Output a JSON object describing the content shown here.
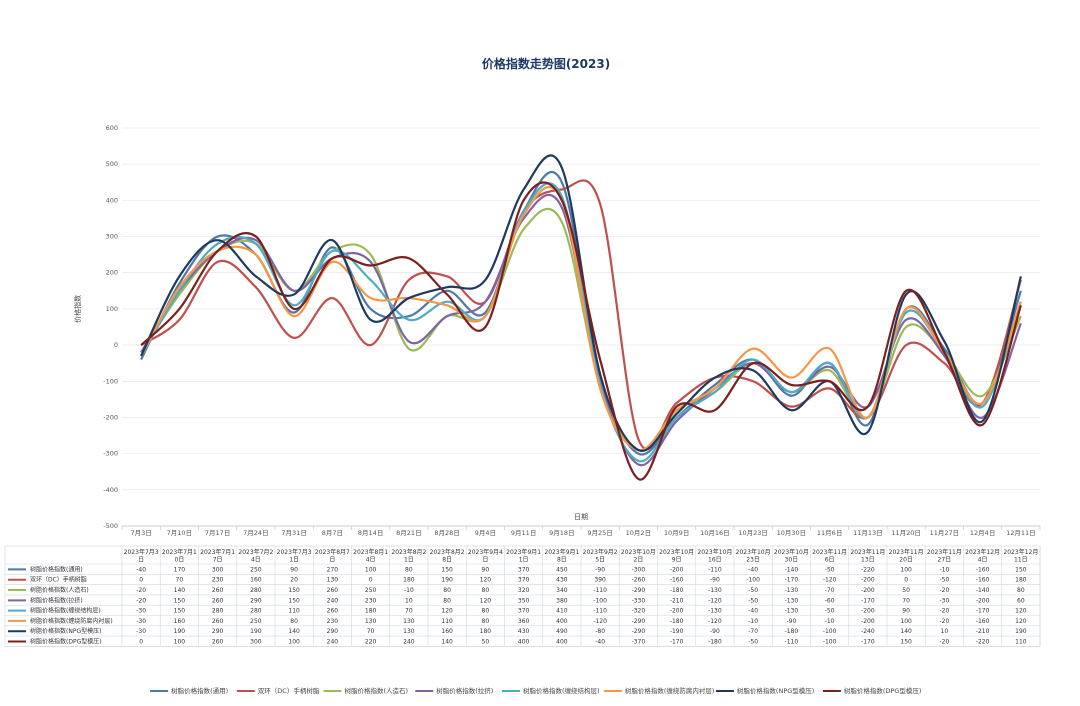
{
  "chart_data": {
    "type": "line",
    "title": "价格指数走势图(2023)",
    "xlabel": "日期",
    "ylabel": "价格指数",
    "ylim": [
      -500,
      600
    ],
    "yticks": [
      600,
      500,
      400,
      300,
      200,
      100,
      0,
      -100,
      -200,
      -300,
      -400,
      -500
    ],
    "grid": true,
    "legend_position": "bottom",
    "axis_dates": [
      "7月3日",
      "7月10日",
      "7月17日",
      "7月24日",
      "7月31日",
      "8月7日",
      "8月14日",
      "8月21日",
      "8月28日",
      "9月4日",
      "9月11日",
      "9月18日",
      "9月25日",
      "10月2日",
      "10月9日",
      "10月16日",
      "10月23日",
      "10月30日",
      "11月6日",
      "11月13日",
      "11月20日",
      "11月27日",
      "12月4日",
      "12月11日"
    ],
    "table_headers": [
      [
        "2023年7月3",
        "日"
      ],
      [
        "2023年7月1",
        "0日"
      ],
      [
        "2023年7月1",
        "7日"
      ],
      [
        "2023年7月2",
        "4日"
      ],
      [
        "2023年7月3",
        "1日"
      ],
      [
        "2023年8月7",
        "日"
      ],
      [
        "2023年8月1",
        "4日"
      ],
      [
        "2023年8月2",
        "1日"
      ],
      [
        "2023年8月2",
        "8日"
      ],
      [
        "2023年9月4",
        "日"
      ],
      [
        "2023年9月1",
        "1日"
      ],
      [
        "2023年9月1",
        "8日"
      ],
      [
        "2023年9月2",
        "5日"
      ],
      [
        "2023年10月",
        "2日"
      ],
      [
        "2023年10月",
        "9日"
      ],
      [
        "2023年10月",
        "16日"
      ],
      [
        "2023年10月",
        "23日"
      ],
      [
        "2023年10月",
        "30日"
      ],
      [
        "2023年11月",
        "6日"
      ],
      [
        "2023年11月",
        "13日"
      ],
      [
        "2023年11月",
        "20日"
      ],
      [
        "2023年11月",
        "27日"
      ],
      [
        "2023年12月",
        "4日"
      ],
      [
        "2023年12月",
        "11日"
      ]
    ],
    "series": [
      {
        "name": "树脂价格指数(通用)",
        "color": "#4e79a7",
        "values": [
          -40,
          170,
          300,
          250,
          90,
          270,
          100,
          80,
          150,
          90,
          370,
          450,
          -90,
          -300,
          -200,
          -110,
          -40,
          -140,
          -50,
          -220,
          100,
          -10,
          -160,
          150
        ]
      },
      {
        "name": "双环（DC）手柄树脂",
        "color": "#c0504d",
        "values": [
          0,
          70,
          230,
          160,
          20,
          130,
          0,
          180,
          190,
          120,
          370,
          430,
          390,
          -260,
          -160,
          -90,
          -100,
          -170,
          -120,
          -200,
          0,
          -50,
          -160,
          180
        ]
      },
      {
        "name": "树脂价格指数(人造石)",
        "color": "#9bbb59",
        "values": [
          -20,
          140,
          260,
          280,
          150,
          260,
          250,
          -10,
          80,
          80,
          320,
          340,
          -110,
          -290,
          -180,
          -130,
          -50,
          -130,
          -70,
          -200,
          50,
          -20,
          -140,
          80
        ]
      },
      {
        "name": "树脂价格指数(拉挤)",
        "color": "#8064a2",
        "values": [
          -20,
          150,
          260,
          290,
          150,
          240,
          230,
          10,
          80,
          120,
          350,
          380,
          -100,
          -330,
          -210,
          -120,
          -50,
          -130,
          -60,
          -170,
          70,
          -30,
          -200,
          60
        ]
      },
      {
        "name": "树脂价格指数(缠绕结构层)",
        "color": "#4bacc6",
        "values": [
          -30,
          150,
          280,
          280,
          110,
          260,
          180,
          70,
          120,
          80,
          370,
          410,
          -110,
          -320,
          -200,
          -130,
          -40,
          -130,
          -50,
          -200,
          90,
          -20,
          -170,
          120
        ]
      },
      {
        "name": "树脂价格指数(缠绕防腐内衬层)",
        "color": "#f79646",
        "values": [
          -30,
          160,
          260,
          250,
          80,
          230,
          130,
          130,
          110,
          80,
          360,
          400,
          -120,
          -290,
          -180,
          -120,
          -10,
          -90,
          -10,
          -200,
          100,
          -20,
          -160,
          120
        ]
      },
      {
        "name": "树脂价格指数(NPG型模压)",
        "color": "#1f3a5f",
        "values": [
          -30,
          190,
          290,
          190,
          140,
          290,
          70,
          130,
          160,
          180,
          430,
          490,
          -80,
          -290,
          -190,
          -90,
          -70,
          -180,
          -100,
          -240,
          140,
          10,
          -210,
          190
        ]
      },
      {
        "name": "树脂价格指数(DPG型模压)",
        "color": "#7b1f1f",
        "values": [
          0,
          100,
          260,
          300,
          100,
          240,
          220,
          240,
          140,
          50,
          400,
          400,
          -40,
          -370,
          -170,
          -180,
          -50,
          -110,
          -100,
          -170,
          150,
          -20,
          -220,
          110
        ]
      }
    ]
  }
}
